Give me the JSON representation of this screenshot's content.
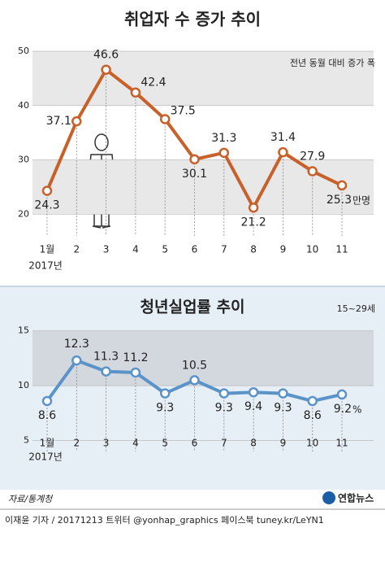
{
  "chart_data": [
    {
      "type": "line",
      "title": "취업자 수 증가 추이",
      "annotation": "전년 동월 대비 증가 폭",
      "unit": "만명",
      "categories": [
        "1월",
        "2",
        "3",
        "4",
        "5",
        "6",
        "7",
        "8",
        "9",
        "10",
        "11"
      ],
      "year_label": "2017년",
      "values": [
        24.3,
        37.1,
        46.6,
        42.4,
        37.5,
        30.1,
        31.3,
        21.2,
        31.4,
        27.9,
        25.3
      ],
      "color": "#c8602a",
      "ylim": [
        16,
        50
      ],
      "yticks": [
        20,
        30,
        40,
        50
      ]
    },
    {
      "type": "line",
      "title": "청년실업률 추이",
      "annotation": "15~29세",
      "unit": "%",
      "categories": [
        "1월",
        "2",
        "3",
        "4",
        "5",
        "6",
        "7",
        "8",
        "9",
        "10",
        "11"
      ],
      "year_label": "2017년",
      "values": [
        8.6,
        12.3,
        11.3,
        11.2,
        9.3,
        10.5,
        9.3,
        9.4,
        9.3,
        8.6,
        9.2
      ],
      "color": "#5b93c9",
      "ylim": [
        4,
        15.5
      ],
      "yticks": [
        5,
        10,
        15
      ]
    }
  ],
  "source": "자료/통계청",
  "logo": "연합뉴스",
  "footer": "이재윤 기자 / 20171213  트위터 @yonhap_graphics  페이스북 tuney.kr/LeYN1"
}
